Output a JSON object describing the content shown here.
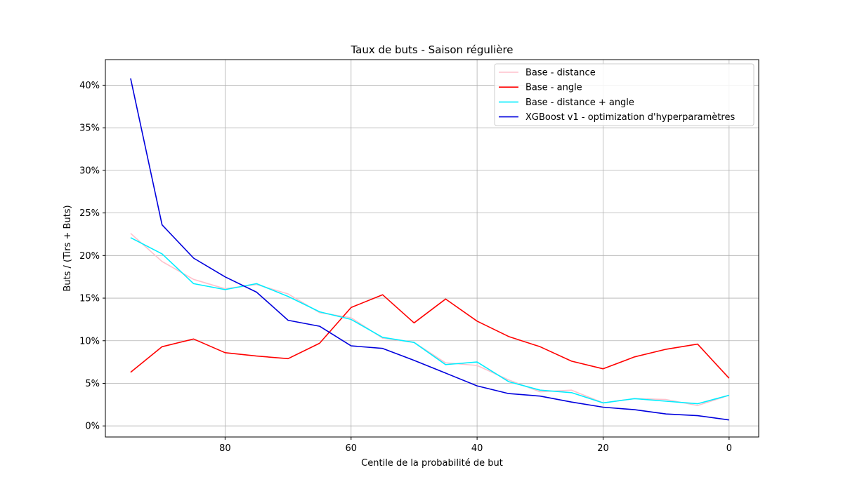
{
  "chart_data": {
    "type": "line",
    "title": "Taux de buts - Saison régulière",
    "xlabel": "Centile de la probabilité de but",
    "ylabel": "Buts / (Tirs + Buts)",
    "x_reversed": true,
    "xlim": [
      99,
      -4.7
    ],
    "ylim": [
      -1.3,
      43.0
    ],
    "xticks": [
      80,
      60,
      40,
      20,
      0
    ],
    "yticks": [
      0,
      5,
      10,
      15,
      20,
      25,
      30,
      35,
      40
    ],
    "ytick_format": "{v}%",
    "grid": true,
    "legend_position": "top-right",
    "x": [
      95,
      90,
      85,
      80,
      75,
      70,
      65,
      60,
      55,
      50,
      45,
      40,
      35,
      30,
      25,
      20,
      15,
      10,
      5,
      0
    ],
    "series": [
      {
        "name": "Base - distance",
        "color": "#ffc0cb",
        "values": [
          22.6,
          19.3,
          17.2,
          16.1,
          16.6,
          15.5,
          13.3,
          12.7,
          10.3,
          9.8,
          7.4,
          7.1,
          5.4,
          4.0,
          4.2,
          2.7,
          3.2,
          3.1,
          2.4,
          3.6
        ]
      },
      {
        "name": "Base - angle",
        "color": "#ff0000",
        "values": [
          6.3,
          9.3,
          10.2,
          8.6,
          8.2,
          7.9,
          9.7,
          13.9,
          15.4,
          12.1,
          14.9,
          12.3,
          10.5,
          9.3,
          7.6,
          6.7,
          8.1,
          9.0,
          9.6,
          5.6
        ]
      },
      {
        "name": "Base - distance + angle",
        "color": "#00eeff",
        "values": [
          22.1,
          20.2,
          16.7,
          16.0,
          16.7,
          15.2,
          13.4,
          12.5,
          10.4,
          9.8,
          7.2,
          7.5,
          5.2,
          4.2,
          3.9,
          2.7,
          3.2,
          2.9,
          2.6,
          3.6
        ]
      },
      {
        "name": "XGBoost v1 - optimization d'hyperparamètres",
        "color": "#0000dd",
        "values": [
          40.8,
          23.6,
          19.7,
          17.5,
          15.7,
          12.4,
          11.7,
          9.4,
          9.1,
          7.7,
          6.2,
          4.7,
          3.8,
          3.5,
          2.8,
          2.2,
          1.9,
          1.4,
          1.2,
          0.7
        ]
      }
    ]
  }
}
